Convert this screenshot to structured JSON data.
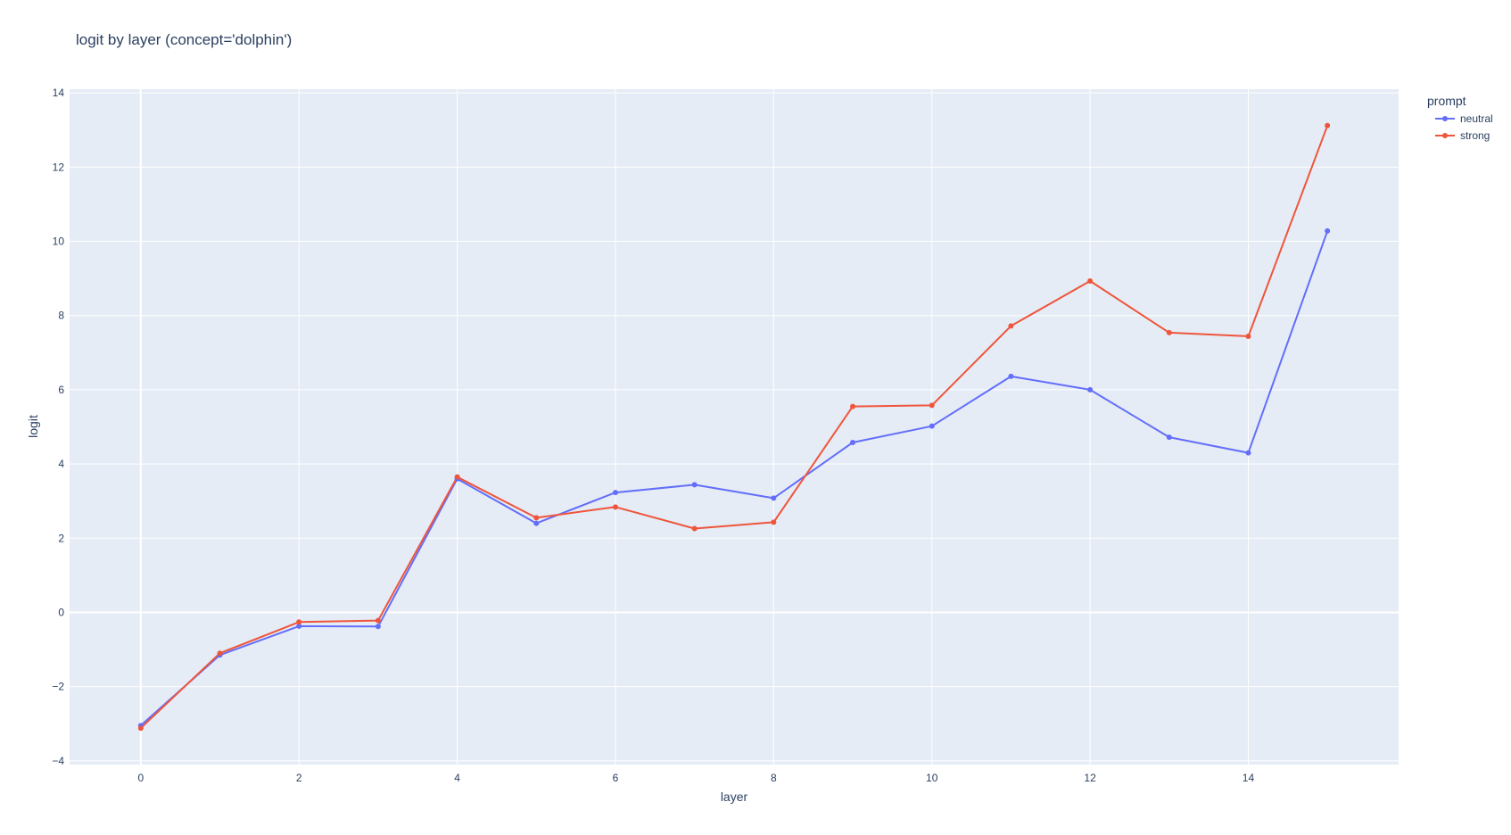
{
  "chart_data": {
    "type": "line",
    "title": "logit by layer (concept='dolphin')",
    "xlabel": "layer",
    "ylabel": "logit",
    "xlim": [
      -0.9,
      15.9
    ],
    "ylim": [
      -4.1,
      14.1
    ],
    "xticks": [
      0,
      2,
      4,
      6,
      8,
      10,
      12,
      14
    ],
    "yticks": [
      -4,
      -2,
      0,
      2,
      4,
      6,
      8,
      10,
      12,
      14
    ],
    "grid": true,
    "legend_title": "prompt",
    "legend_position": "top-right",
    "x": [
      0,
      1,
      2,
      3,
      4,
      5,
      6,
      7,
      8,
      9,
      10,
      11,
      12,
      13,
      14,
      15
    ],
    "series": [
      {
        "name": "neutral",
        "color": "#636efa",
        "values": [
          -3.05,
          -1.15,
          -0.37,
          -0.38,
          3.6,
          2.4,
          3.23,
          3.44,
          3.08,
          4.58,
          5.02,
          6.36,
          6.0,
          4.72,
          4.3,
          10.28
        ]
      },
      {
        "name": "strong",
        "color": "#ef553b",
        "values": [
          -3.12,
          -1.1,
          -0.26,
          -0.22,
          3.65,
          2.55,
          2.84,
          2.26,
          2.43,
          5.55,
          5.58,
          7.72,
          8.93,
          7.54,
          7.44,
          13.12
        ]
      }
    ]
  }
}
